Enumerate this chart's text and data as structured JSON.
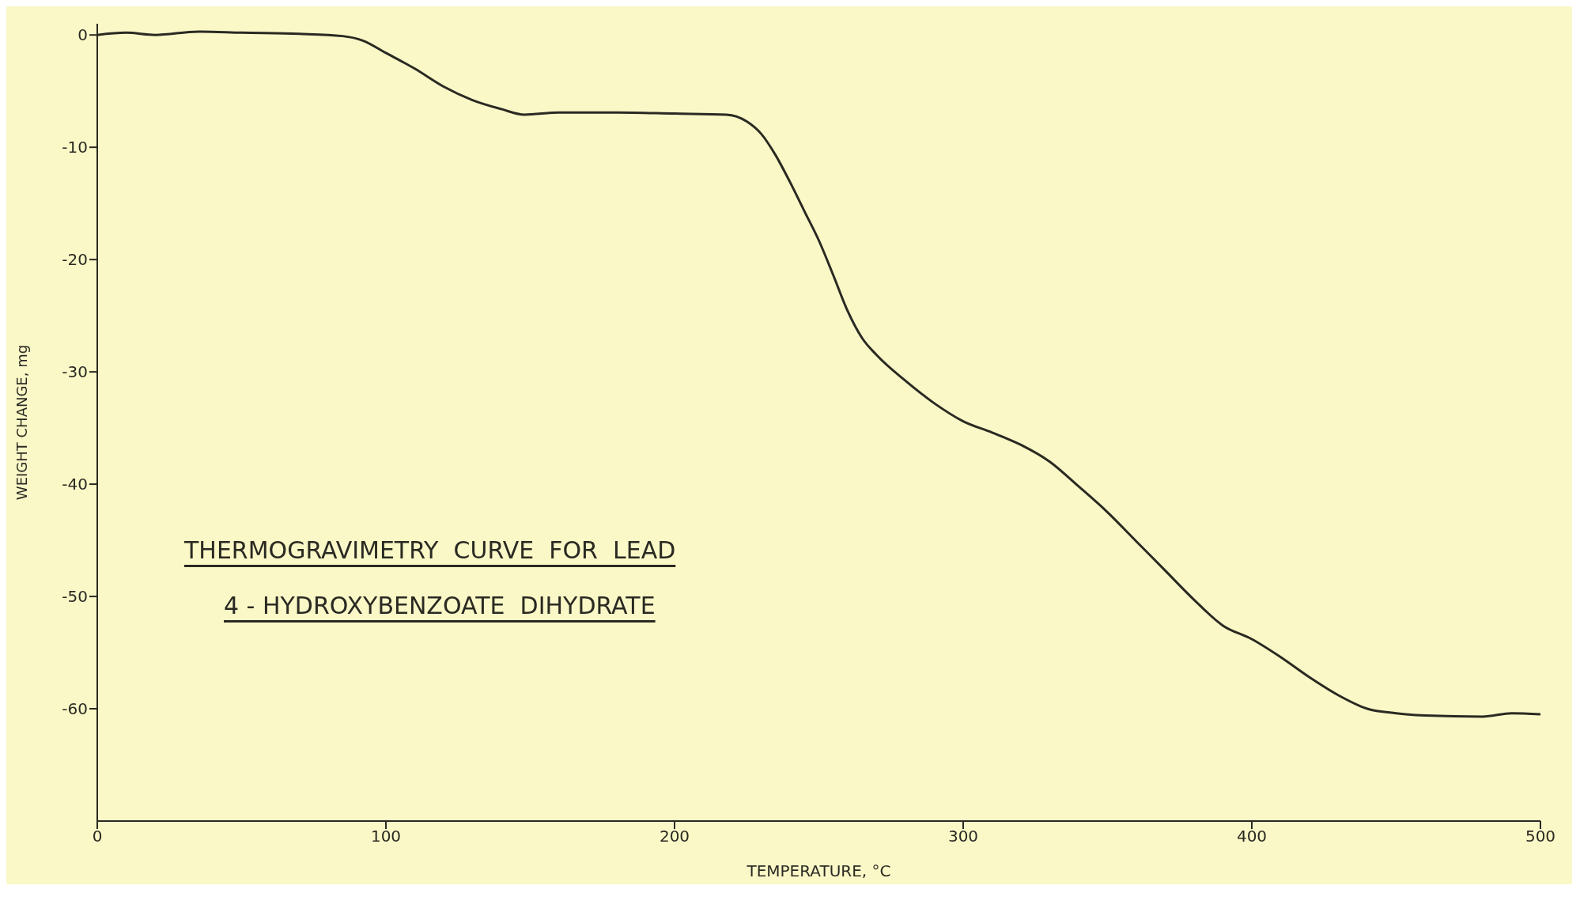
{
  "chart_data": {
    "type": "line",
    "xlabel": "TEMPERATURE, °C",
    "ylabel": "WEIGHT CHANGE, mg",
    "annotations": [
      "THERMOGRAVIMETRY  CURVE  FOR  LEAD",
      "4 - HYDROXYBENZOATE  DIHYDRATE"
    ],
    "xlim": [
      0,
      500
    ],
    "xticks": [
      0,
      100,
      200,
      300,
      400,
      500
    ],
    "ylim": [
      -70,
      1
    ],
    "yticks": [
      -60,
      -50,
      -40,
      -30,
      -20,
      -10,
      0
    ],
    "x": [
      0,
      10,
      20,
      35,
      50,
      70,
      85,
      92,
      100,
      110,
      120,
      130,
      140,
      148,
      160,
      180,
      200,
      218,
      225,
      230,
      235,
      240,
      245,
      250,
      255,
      260,
      265,
      270,
      280,
      290,
      300,
      310,
      320,
      330,
      340,
      350,
      360,
      370,
      380,
      390,
      400,
      410,
      420,
      430,
      440,
      450,
      460,
      480,
      490,
      500
    ],
    "series": [
      {
        "color": "#2a2a22",
        "values": [
          0,
          0.2,
          0,
          0.3,
          0.2,
          0.1,
          -0.1,
          -0.5,
          -1.6,
          -3.0,
          -4.6,
          -5.8,
          -6.6,
          -7.1,
          -6.9,
          -6.9,
          -7.0,
          -7.1,
          -7.7,
          -8.8,
          -10.7,
          -13.1,
          -15.7,
          -18.3,
          -21.4,
          -24.6,
          -27.0,
          -28.5,
          -30.8,
          -32.8,
          -34.4,
          -35.4,
          -36.5,
          -38.0,
          -40.2,
          -42.5,
          -45.1,
          -47.7,
          -50.3,
          -52.6,
          -53.8,
          -55.4,
          -57.2,
          -58.8,
          -60.0,
          -60.4,
          -60.6,
          -60.7,
          -60.4,
          -60.5
        ]
      }
    ]
  }
}
